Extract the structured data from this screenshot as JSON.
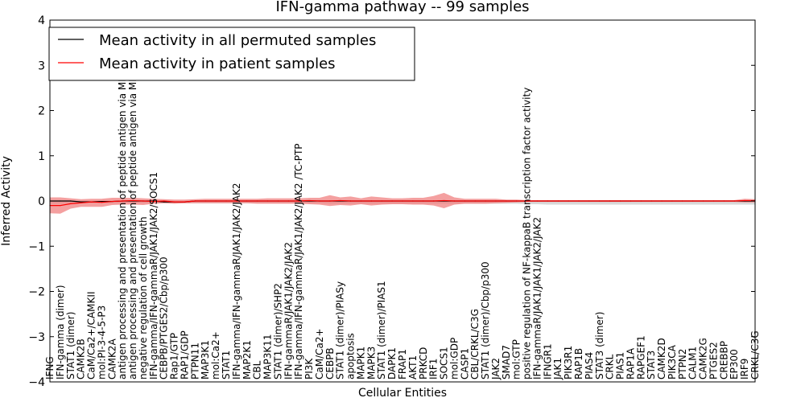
{
  "chart_data": {
    "type": "line",
    "title": "IFN-gamma pathway -- 99 samples",
    "xlabel": "Cellular Entities",
    "ylabel": "Inferred Activity",
    "ylim": [
      -4,
      4
    ],
    "yticks": [
      -4,
      -3,
      -2,
      -1,
      0,
      1,
      2,
      3,
      4
    ],
    "ytick_labels": [
      "−4",
      "−3",
      "−2",
      "−1",
      "0",
      "1",
      "2",
      "3",
      "4"
    ],
    "grid": false,
    "legend_position": "top-left",
    "categories": [
      "IFNG",
      "IFN-gamma (dimer)",
      "STAT1 (dimer)",
      "CAMK2B",
      "CaM/Ca2+/CAMKII",
      "mol:PI-3-4-5-P3",
      "CAMK2A",
      "antigen processing and presentation of peptide antigen via MHC class I",
      "antigen processing and presentation of peptide antigen via MHC class II",
      "negative regulation of cell growth",
      "IFN-gamma/IFN-gammaR/JAK1/JAK2/SOCS1",
      "CEBPB/PTGES2/Cbp/p300",
      "Rap1/GTP",
      "RAP1/GDP",
      "PTPN11",
      "MAP3K1",
      "mol:Ca2+",
      "STAT1",
      "IFN-gamma/IFN-gammaR/JAK1/JAK2/JAK2",
      "MAP2K1",
      "CBL",
      "MAP3K11",
      "STAT1 (dimer)/SHP2",
      "IFN-gammaR/JAK1/JAK2/JAK2",
      "IFN-gamma/IFN-gammaR/JAK1/JAK2/JAK2 /TC-PTP",
      "PI3K",
      "CaM/Ca2+",
      "CEBPB",
      "STAT1 (dimer)/PIASy",
      "apoptosis",
      "MAPK1",
      "MAPK3",
      "STAT1 (dimer)/PIAS1",
      "DAPK1",
      "FRAP1",
      "AKT1",
      "PRKCD",
      "IRF1",
      "SOCS1",
      "mol:GDP",
      "CASP1",
      "CBL/CRKL/C3G",
      "STAT1 (dimer)/Cbp/p300",
      "JAK2",
      "SMAD7",
      "mol:GTP",
      "positive regulation of NF-kappaB transcription factor activity",
      "IFN-gammaR/JAK1/JAK1/JAK2/JAK2",
      "IFNGR1",
      "JAK1",
      "PIK3R1",
      "RAP1B",
      "PIAS4",
      "STAT3 (dimer)",
      "CRKL",
      "PIAS1",
      "RAP1A",
      "RAPGEF1",
      "STAT3",
      "CAMK2D",
      "PIK3CA",
      "PTPN2",
      "CALM1",
      "CAMK2G",
      "PTGES2",
      "CREBBP",
      "EP300",
      "IRF9",
      "CRKL/C3G"
    ],
    "series": [
      {
        "name": "Mean activity in all permuted samples",
        "color": "#000000",
        "values": [
          0.0,
          0.0,
          0.0,
          -0.02,
          -0.02,
          -0.01,
          -0.01,
          0.0,
          0.0,
          0.0,
          0.0,
          -0.02,
          -0.02,
          -0.02,
          0.0,
          0.0,
          0.0,
          0.0,
          0.0,
          0.0,
          0.0,
          0.0,
          0.0,
          0.0,
          0.0,
          0.0,
          0.0,
          0.0,
          0.0,
          0.0,
          0.0,
          0.0,
          0.0,
          0.0,
          0.0,
          0.0,
          0.0,
          0.0,
          0.0,
          0.0,
          0.0,
          0.0,
          0.0,
          0.0,
          0.0,
          0.0,
          0.0,
          0.0,
          0.0,
          0.0,
          0.0,
          0.0,
          0.0,
          0.0,
          0.0,
          0.0,
          0.0,
          0.0,
          0.0,
          0.0,
          0.0,
          0.0,
          0.0,
          0.0,
          0.0,
          0.0,
          0.0,
          0.0,
          0.0
        ],
        "band_upper": [
          0.01,
          0.01,
          0.01,
          0.01,
          0.01,
          0.01,
          0.01,
          0.01,
          0.01,
          0.01,
          0.01,
          0.01,
          0.01,
          0.01,
          0.01,
          0.01,
          0.01,
          0.01,
          0.01,
          0.01,
          0.01,
          0.01,
          0.01,
          0.01,
          0.01,
          0.01,
          0.01,
          0.01,
          0.01,
          0.01,
          0.01,
          0.01,
          0.01,
          0.01,
          0.01,
          0.01,
          0.01,
          0.01,
          0.01,
          0.01,
          0.01,
          0.01,
          0.01,
          0.01,
          0.01,
          0.01,
          0.01,
          0.01,
          0.01,
          0.01,
          0.01,
          0.01,
          0.01,
          0.01,
          0.01,
          0.01,
          0.01,
          0.01,
          0.01,
          0.01,
          0.01,
          0.01,
          0.01,
          0.01,
          0.01,
          0.01,
          0.01,
          0.01,
          0.01
        ],
        "band_lower": [
          -0.06,
          -0.06,
          -0.05,
          -0.05,
          -0.05,
          -0.05,
          -0.05,
          -0.05,
          -0.05,
          -0.05,
          -0.05,
          -0.05,
          -0.05,
          -0.05,
          -0.05,
          -0.05,
          -0.05,
          -0.05,
          -0.05,
          -0.05,
          -0.05,
          -0.05,
          -0.05,
          -0.05,
          -0.05,
          -0.05,
          -0.05,
          -0.06,
          -0.06,
          -0.06,
          -0.06,
          -0.06,
          -0.06,
          -0.06,
          -0.06,
          -0.06,
          -0.06,
          -0.06,
          -0.06,
          -0.06,
          -0.06,
          -0.06,
          -0.06,
          -0.06,
          -0.06,
          -0.06,
          -0.07,
          -0.07,
          -0.08,
          -0.08,
          -0.08,
          -0.08,
          -0.08,
          -0.08,
          -0.08,
          -0.08,
          -0.08,
          -0.08,
          -0.08,
          -0.08,
          -0.08,
          -0.08,
          -0.08,
          -0.08,
          -0.08,
          -0.08,
          -0.08,
          -0.08,
          -0.08
        ]
      },
      {
        "name": "Mean activity in patient samples",
        "color": "#ff0000",
        "values": [
          -0.1,
          -0.1,
          -0.06,
          -0.04,
          -0.02,
          -0.03,
          -0.01,
          0.0,
          0.01,
          0.0,
          -0.01,
          0.0,
          -0.02,
          -0.02,
          0.0,
          0.0,
          0.0,
          0.0,
          0.0,
          0.0,
          0.0,
          0.0,
          0.0,
          0.0,
          0.0,
          0.01,
          0.0,
          0.0,
          0.01,
          0.0,
          0.0,
          0.0,
          0.0,
          0.0,
          0.0,
          0.0,
          0.0,
          0.0,
          0.01,
          0.0,
          0.0,
          0.0,
          0.0,
          0.0,
          0.0,
          0.0,
          0.0,
          0.0,
          0.0,
          0.0,
          0.0,
          0.0,
          0.0,
          0.0,
          0.0,
          0.0,
          0.0,
          0.0,
          0.0,
          0.0,
          0.0,
          0.0,
          0.0,
          0.0,
          0.0,
          0.0,
          0.0,
          0.01,
          0.01
        ],
        "band_upper": [
          0.08,
          0.08,
          0.06,
          0.04,
          0.05,
          0.05,
          0.07,
          0.07,
          0.07,
          0.06,
          0.05,
          0.04,
          0.03,
          0.03,
          0.04,
          0.05,
          0.05,
          0.05,
          0.05,
          0.05,
          0.05,
          0.06,
          0.06,
          0.06,
          0.06,
          0.07,
          0.07,
          0.13,
          0.08,
          0.1,
          0.06,
          0.1,
          0.08,
          0.06,
          0.06,
          0.07,
          0.07,
          0.11,
          0.18,
          0.08,
          0.05,
          0.05,
          0.05,
          0.05,
          0.03,
          0.03,
          0.02,
          0.02,
          0.02,
          0.02,
          0.02,
          0.02,
          0.02,
          0.02,
          0.02,
          0.02,
          0.02,
          0.02,
          0.02,
          0.02,
          0.02,
          0.02,
          0.02,
          0.02,
          0.02,
          0.02,
          0.02,
          0.05,
          0.04
        ],
        "band_lower": [
          -0.27,
          -0.28,
          -0.17,
          -0.13,
          -0.13,
          -0.13,
          -0.09,
          -0.08,
          -0.08,
          -0.09,
          -0.06,
          -0.05,
          -0.06,
          -0.05,
          -0.05,
          -0.05,
          -0.05,
          -0.05,
          -0.05,
          -0.05,
          -0.06,
          -0.06,
          -0.06,
          -0.06,
          -0.06,
          -0.07,
          -0.08,
          -0.11,
          -0.09,
          -0.1,
          -0.07,
          -0.1,
          -0.08,
          -0.07,
          -0.07,
          -0.08,
          -0.08,
          -0.1,
          -0.16,
          -0.08,
          -0.06,
          -0.06,
          -0.06,
          -0.05,
          -0.04,
          -0.03,
          -0.02,
          -0.02,
          -0.02,
          -0.02,
          -0.02,
          -0.02,
          -0.02,
          -0.02,
          -0.02,
          -0.02,
          -0.02,
          -0.02,
          -0.02,
          -0.02,
          -0.02,
          -0.02,
          -0.02,
          -0.02,
          -0.02,
          -0.02,
          -0.02,
          -0.03,
          -0.03
        ]
      }
    ],
    "fill_colors": {
      "permuted_band": "#c8c8c8",
      "patient_band": "#f08080"
    }
  }
}
